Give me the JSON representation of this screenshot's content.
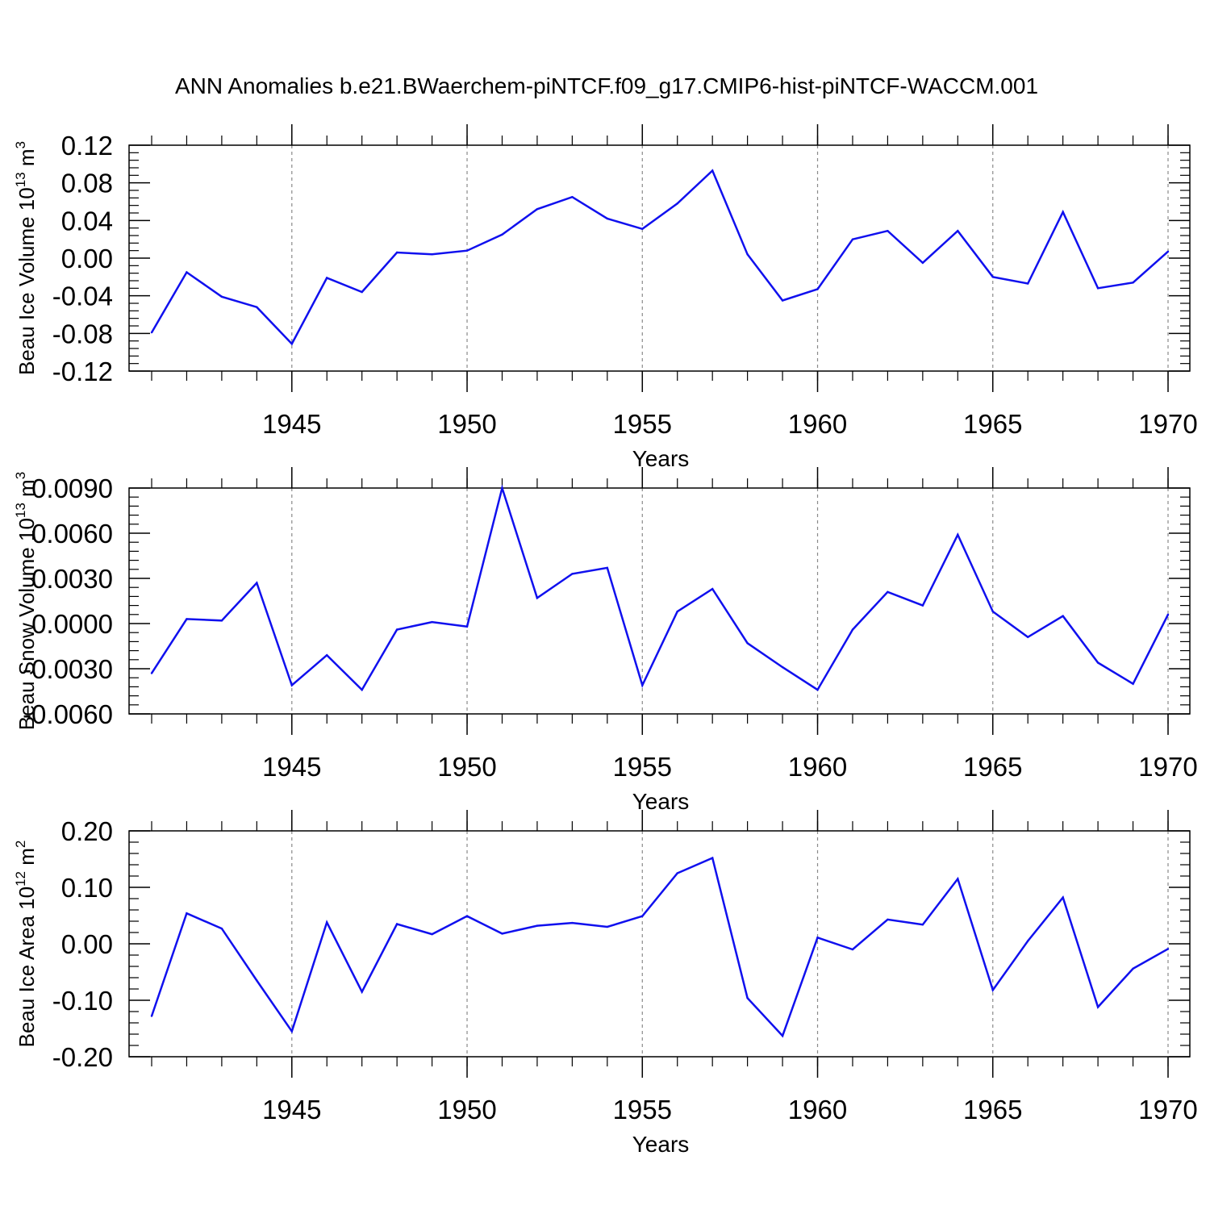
{
  "title": "ANN Anomalies b.e21.BWaerchem-piNTCF.f09_g17.CMIP6-hist-piNTCF-WACCM.001",
  "colors": {
    "line": "#1010ee",
    "axis": "#000000",
    "grid": "#8a8a8a",
    "background": "#ffffff"
  },
  "chart_data": [
    {
      "type": "line",
      "ylabel": {
        "main": "Beau Ice Volume 10",
        "sup": "13",
        "unit": " m",
        "unit_sup": "3"
      },
      "xlabel": "Years",
      "xlim": [
        1941,
        1970
      ],
      "ylim": [
        -0.12,
        0.12
      ],
      "xticks": [
        "1945",
        "1950",
        "1955",
        "1960",
        "1965",
        "1970"
      ],
      "yticks": [
        "0.12",
        "0.08",
        "0.04",
        "0.00",
        "-0.04",
        "-0.08",
        "-0.12"
      ],
      "x": [
        1941,
        1942,
        1943,
        1944,
        1945,
        1946,
        1947,
        1948,
        1949,
        1950,
        1951,
        1952,
        1953,
        1954,
        1955,
        1956,
        1957,
        1958,
        1959,
        1960,
        1961,
        1962,
        1963,
        1964,
        1965,
        1966,
        1967,
        1968,
        1969,
        1970
      ],
      "values": [
        -0.079,
        -0.015,
        -0.041,
        -0.052,
        -0.091,
        -0.021,
        -0.036,
        0.006,
        0.004,
        0.008,
        0.025,
        0.052,
        0.065,
        0.042,
        0.031,
        0.058,
        0.093,
        0.004,
        -0.045,
        -0.033,
        0.02,
        0.029,
        -0.005,
        0.029,
        -0.02,
        -0.027,
        0.049,
        -0.032,
        -0.026,
        0.007
      ]
    },
    {
      "type": "line",
      "ylabel": {
        "main": "Beau Snow Volume 10",
        "sup": "13",
        "unit": " m",
        "unit_sup": "3"
      },
      "xlabel": "Years",
      "xlim": [
        1941,
        1970
      ],
      "ylim": [
        -0.006,
        0.009
      ],
      "xticks": [
        "1945",
        "1950",
        "1955",
        "1960",
        "1965",
        "1970"
      ],
      "yticks": [
        "0.0090",
        "0.0060",
        "0.0030",
        "0.0000",
        "-0.0030",
        "-0.0060"
      ],
      "x": [
        1941,
        1942,
        1943,
        1944,
        1945,
        1946,
        1947,
        1948,
        1949,
        1950,
        1951,
        1952,
        1953,
        1954,
        1955,
        1956,
        1957,
        1958,
        1959,
        1960,
        1961,
        1962,
        1963,
        1964,
        1965,
        1966,
        1967,
        1968,
        1969,
        1970
      ],
      "values": [
        -0.0033,
        0.0003,
        0.0002,
        0.0027,
        -0.0041,
        -0.0021,
        -0.0044,
        -0.0004,
        0.0001,
        -0.0002,
        0.009,
        0.0017,
        0.0033,
        0.0037,
        -0.0041,
        0.0008,
        0.0023,
        -0.0013,
        -0.0029,
        -0.0044,
        -0.0004,
        0.0021,
        0.0012,
        0.0059,
        0.0008,
        -0.0009,
        0.0005,
        -0.0026,
        -0.004,
        0.0006
      ]
    },
    {
      "type": "line",
      "ylabel": {
        "main": "Beau Ice Area 10",
        "sup": "12",
        "unit": " m",
        "unit_sup": "2"
      },
      "xlabel": "Years",
      "xlim": [
        1941,
        1970
      ],
      "ylim": [
        -0.2,
        0.2
      ],
      "xticks": [
        "1945",
        "1950",
        "1955",
        "1960",
        "1965",
        "1970"
      ],
      "yticks": [
        "0.20",
        "0.10",
        "0.00",
        "-0.10",
        "-0.20"
      ],
      "x": [
        1941,
        1942,
        1943,
        1944,
        1945,
        1946,
        1947,
        1948,
        1949,
        1950,
        1951,
        1952,
        1953,
        1954,
        1955,
        1956,
        1957,
        1958,
        1959,
        1960,
        1961,
        1962,
        1963,
        1964,
        1965,
        1966,
        1967,
        1968,
        1969,
        1970
      ],
      "values": [
        -0.128,
        0.054,
        0.027,
        -0.065,
        -0.155,
        0.038,
        -0.085,
        0.035,
        0.017,
        0.049,
        0.018,
        0.032,
        0.037,
        0.03,
        0.049,
        0.125,
        0.152,
        -0.096,
        -0.163,
        0.011,
        -0.01,
        0.043,
        0.034,
        0.115,
        -0.082,
        0.005,
        0.082,
        -0.112,
        -0.044,
        -0.009
      ]
    }
  ]
}
